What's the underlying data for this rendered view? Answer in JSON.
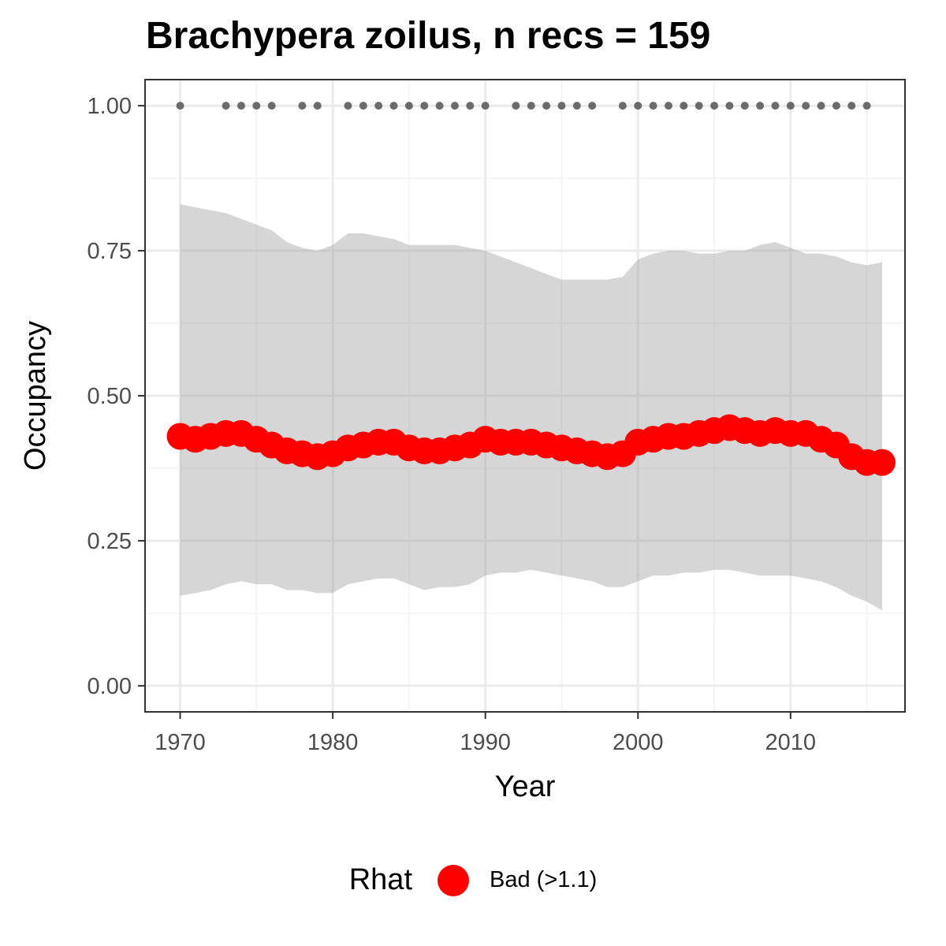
{
  "chart_data": {
    "type": "line",
    "title": "Brachypera zoilus, n recs = 159",
    "xlabel": "Year",
    "ylabel": "Occupancy",
    "xlim": [
      1967.7,
      2017.5
    ],
    "ylim": [
      -0.045,
      1.045
    ],
    "x_ticks": [
      1970,
      1980,
      1990,
      2000,
      2010
    ],
    "y_ticks": [
      0.0,
      0.25,
      0.5,
      0.75,
      1.0
    ],
    "y_tick_labels": [
      "0.00",
      "0.25",
      "0.50",
      "0.75",
      "1.00"
    ],
    "grid": true,
    "legend": {
      "position": "bottom",
      "title": "Rhat",
      "entries": [
        {
          "label": "Bad (>1.1)",
          "color": "#ff0000"
        }
      ]
    },
    "series": [
      {
        "name": "Bad (>1.1)",
        "color": "#ff0000",
        "x": [
          1970,
          1971,
          1972,
          1973,
          1974,
          1975,
          1976,
          1977,
          1978,
          1979,
          1980,
          1981,
          1982,
          1983,
          1984,
          1985,
          1986,
          1987,
          1988,
          1989,
          1990,
          1991,
          1992,
          1993,
          1994,
          1995,
          1996,
          1997,
          1998,
          1999,
          2000,
          2001,
          2002,
          2003,
          2004,
          2005,
          2006,
          2007,
          2008,
          2009,
          2010,
          2011,
          2012,
          2013,
          2014,
          2015,
          2016
        ],
        "y": [
          0.43,
          0.425,
          0.43,
          0.435,
          0.435,
          0.425,
          0.415,
          0.405,
          0.4,
          0.395,
          0.4,
          0.41,
          0.415,
          0.42,
          0.42,
          0.41,
          0.405,
          0.405,
          0.41,
          0.415,
          0.425,
          0.42,
          0.42,
          0.42,
          0.415,
          0.41,
          0.405,
          0.4,
          0.395,
          0.4,
          0.42,
          0.425,
          0.43,
          0.43,
          0.435,
          0.44,
          0.445,
          0.44,
          0.435,
          0.44,
          0.435,
          0.435,
          0.425,
          0.415,
          0.395,
          0.385,
          0.385
        ],
        "lower": [
          0.155,
          0.16,
          0.165,
          0.175,
          0.18,
          0.175,
          0.175,
          0.165,
          0.165,
          0.16,
          0.16,
          0.175,
          0.18,
          0.185,
          0.185,
          0.175,
          0.165,
          0.17,
          0.17,
          0.175,
          0.19,
          0.195,
          0.195,
          0.2,
          0.195,
          0.19,
          0.185,
          0.18,
          0.17,
          0.17,
          0.18,
          0.19,
          0.19,
          0.195,
          0.195,
          0.2,
          0.2,
          0.195,
          0.19,
          0.19,
          0.19,
          0.185,
          0.18,
          0.17,
          0.155,
          0.145,
          0.13
        ],
        "upper": [
          0.83,
          0.825,
          0.82,
          0.815,
          0.805,
          0.795,
          0.785,
          0.765,
          0.755,
          0.75,
          0.76,
          0.78,
          0.78,
          0.775,
          0.77,
          0.76,
          0.76,
          0.76,
          0.76,
          0.755,
          0.75,
          0.74,
          0.73,
          0.72,
          0.71,
          0.7,
          0.7,
          0.7,
          0.7,
          0.705,
          0.735,
          0.745,
          0.75,
          0.75,
          0.745,
          0.745,
          0.75,
          0.75,
          0.76,
          0.765,
          0.755,
          0.745,
          0.745,
          0.74,
          0.73,
          0.725,
          0.73
        ]
      },
      {
        "name": "",
        "color": "#6b6b6b",
        "type": "scatter",
        "x": [
          1970,
          1973,
          1974,
          1975,
          1976,
          1978,
          1979,
          1981,
          1982,
          1983,
          1984,
          1985,
          1986,
          1987,
          1988,
          1989,
          1990,
          1992,
          1993,
          1994,
          1995,
          1996,
          1997,
          1999,
          2000,
          2001,
          2002,
          2003,
          2004,
          2005,
          2006,
          2007,
          2008,
          2009,
          2010,
          2011,
          2012,
          2013,
          2014,
          2015
        ],
        "y": [
          1,
          1,
          1,
          1,
          1,
          1,
          1,
          1,
          1,
          1,
          1,
          1,
          1,
          1,
          1,
          1,
          1,
          1,
          1,
          1,
          1,
          1,
          1,
          1,
          1,
          1,
          1,
          1,
          1,
          1,
          1,
          1,
          1,
          1,
          1,
          1,
          1,
          1,
          1,
          1
        ]
      }
    ]
  }
}
